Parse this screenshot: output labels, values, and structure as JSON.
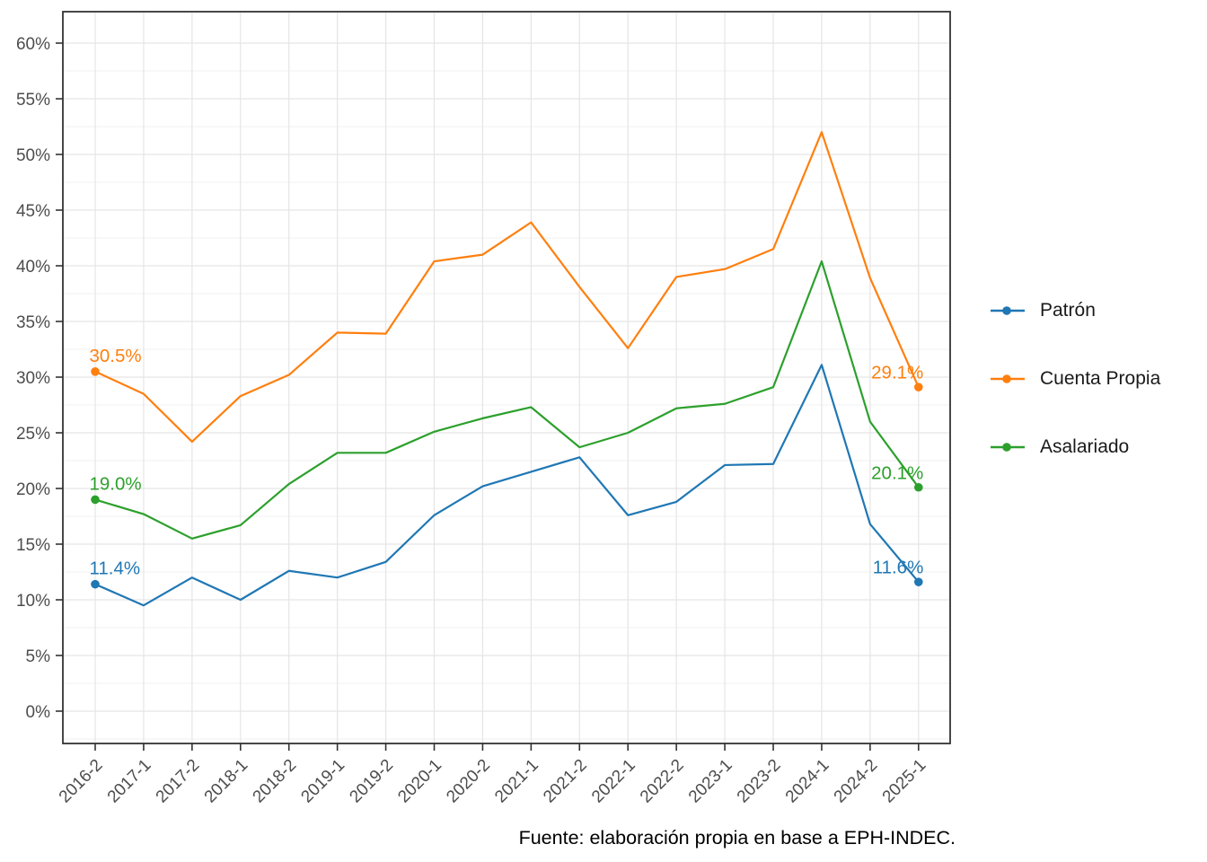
{
  "chart_data": {
    "type": "line",
    "title": "",
    "xlabel": "",
    "ylabel": "",
    "categories": [
      "2016-2",
      "2017-1",
      "2017-2",
      "2018-1",
      "2018-2",
      "2019-1",
      "2019-2",
      "2020-1",
      "2020-2",
      "2021-1",
      "2021-2",
      "2022-1",
      "2022-2",
      "2023-1",
      "2023-2",
      "2024-1",
      "2024-2",
      "2025-1"
    ],
    "series": [
      {
        "name": "Patrón",
        "color": "#1f77b4",
        "values": [
          11.4,
          9.5,
          12.0,
          10.0,
          12.6,
          12.0,
          13.4,
          17.6,
          20.2,
          21.5,
          22.8,
          17.6,
          18.8,
          22.1,
          22.2,
          31.1,
          16.8,
          11.6
        ],
        "start_label": "11.4%",
        "end_label": "11.6%"
      },
      {
        "name": "Cuenta Propia",
        "color": "#ff7f0e",
        "values": [
          30.5,
          28.5,
          24.2,
          28.3,
          30.2,
          34.0,
          33.9,
          40.4,
          41.0,
          43.9,
          38.1,
          32.6,
          39.0,
          39.7,
          41.5,
          52.0,
          38.9,
          29.1
        ],
        "start_label": "30.5%",
        "end_label": "29.1%"
      },
      {
        "name": "Asalariado",
        "color": "#2ca02c",
        "values": [
          19.0,
          17.7,
          15.5,
          16.7,
          20.4,
          23.2,
          23.2,
          25.1,
          26.3,
          27.3,
          23.7,
          25.0,
          27.2,
          27.6,
          29.1,
          40.4,
          26.0,
          20.1
        ],
        "start_label": "19.0%",
        "end_label": "20.1%"
      }
    ],
    "ylim": [
      0,
      60
    ],
    "ytick_step": 5,
    "ytick_labels": [
      "0%",
      "5%",
      "10%",
      "15%",
      "20%",
      "25%",
      "30%",
      "35%",
      "40%",
      "45%",
      "50%",
      "55%",
      "60%"
    ],
    "grid": true,
    "markers": "endpoints-only",
    "legend_position": "right",
    "caption": "Fuente: elaboración propia en base a EPH-INDEC."
  }
}
